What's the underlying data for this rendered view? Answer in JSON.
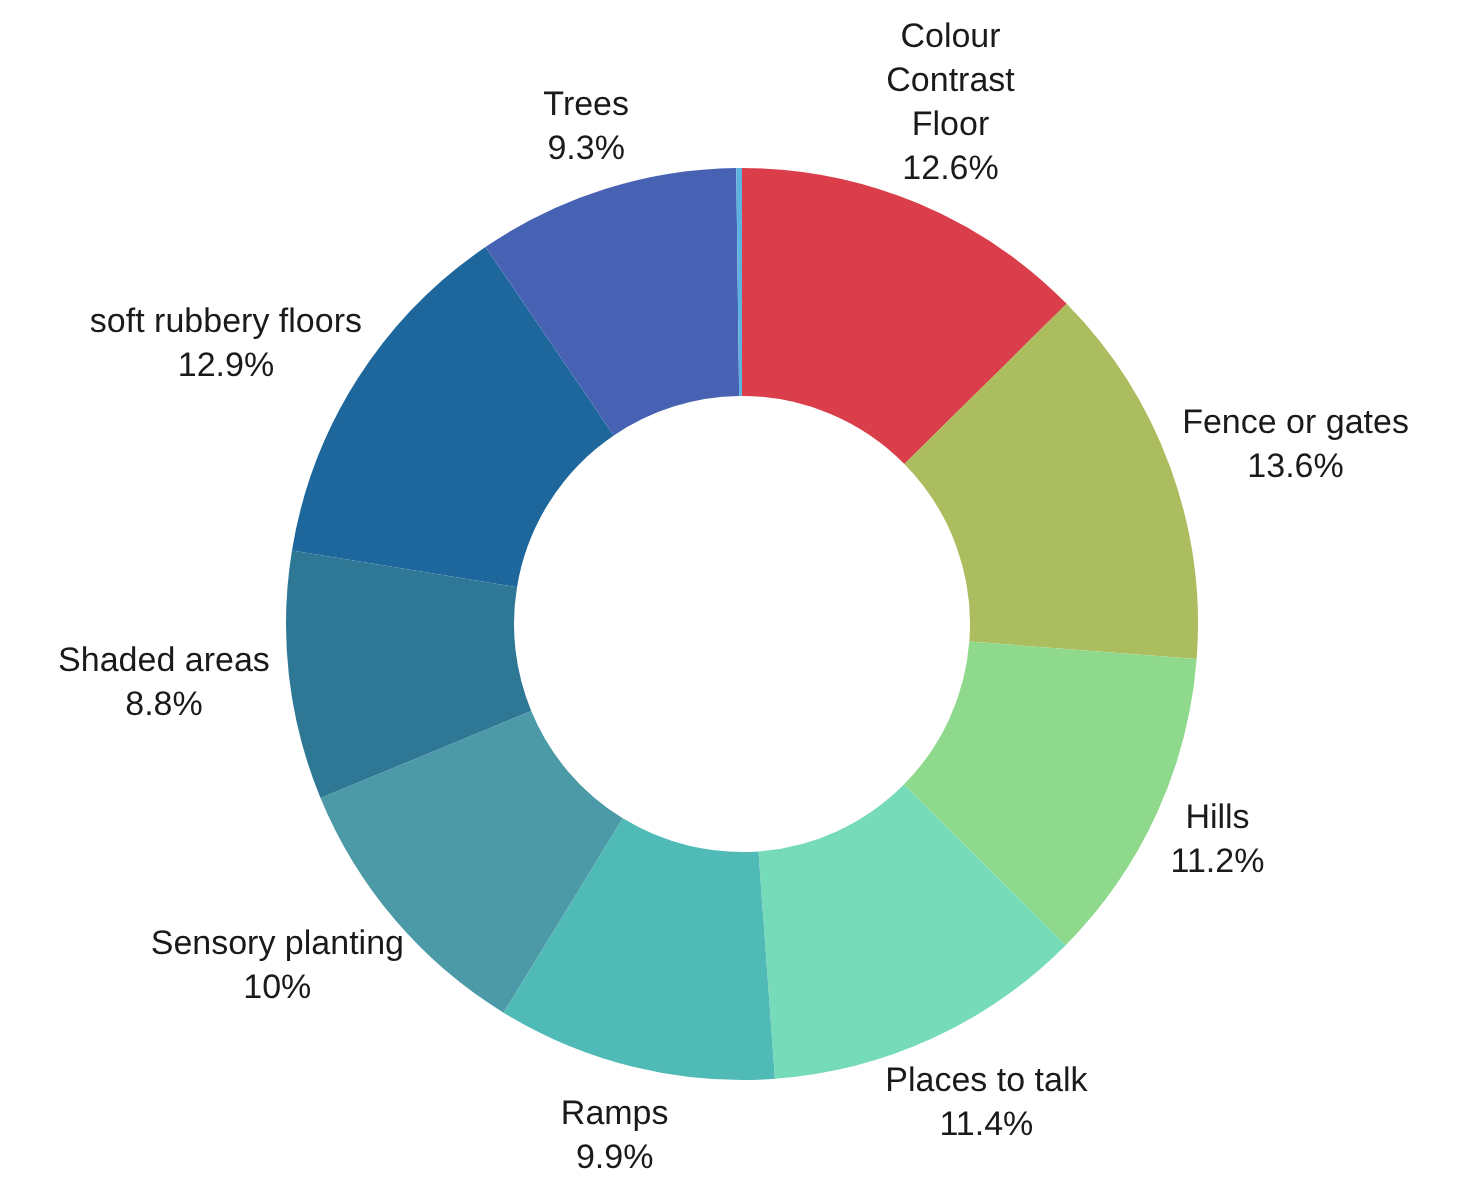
{
  "chart_data": {
    "type": "donut",
    "categories": [
      "Colour Contrast Floor",
      "Fence or gates",
      "Hills",
      "Places to talk",
      "Ramps",
      "Sensory planting",
      "Shaded areas",
      "soft rubbery floors",
      "Trees",
      null
    ],
    "values": [
      12.6,
      13.6,
      11.2,
      11.4,
      9.9,
      10,
      8.8,
      12.9,
      9.3,
      0.2
    ],
    "value_labels": [
      "12.6%",
      "13.6%",
      "11.2%",
      "11.4%",
      "9.9%",
      "10%",
      "8.8%",
      "12.9%",
      "9.3%",
      null
    ],
    "colors": [
      "#d93e4a",
      "#abbd5e",
      "#8ed98b",
      "#76dbb8",
      "#50bab6",
      "#4c9aa7",
      "#2e7895",
      "#1d679c",
      "#4761b3",
      "#5cb3e0"
    ]
  }
}
